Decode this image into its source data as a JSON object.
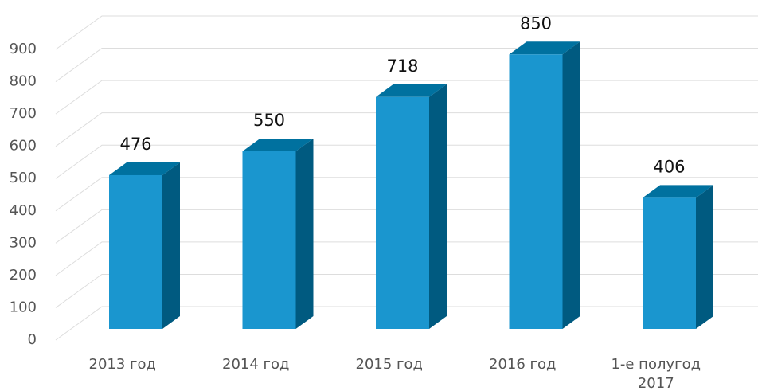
{
  "chart_data": {
    "type": "bar3d",
    "categories": [
      "2013 год",
      "2014 год",
      "2015 год",
      "2016 год",
      "1-е полугод 2017"
    ],
    "values": [
      476,
      550,
      718,
      850,
      406
    ],
    "colors": {
      "front": "#1a96cf",
      "side": "#005a80",
      "top": "#00719f"
    },
    "ylim": [
      0,
      900
    ],
    "yticks": [
      0,
      100,
      200,
      300,
      400,
      500,
      600,
      700,
      800,
      900
    ],
    "grid": true
  }
}
